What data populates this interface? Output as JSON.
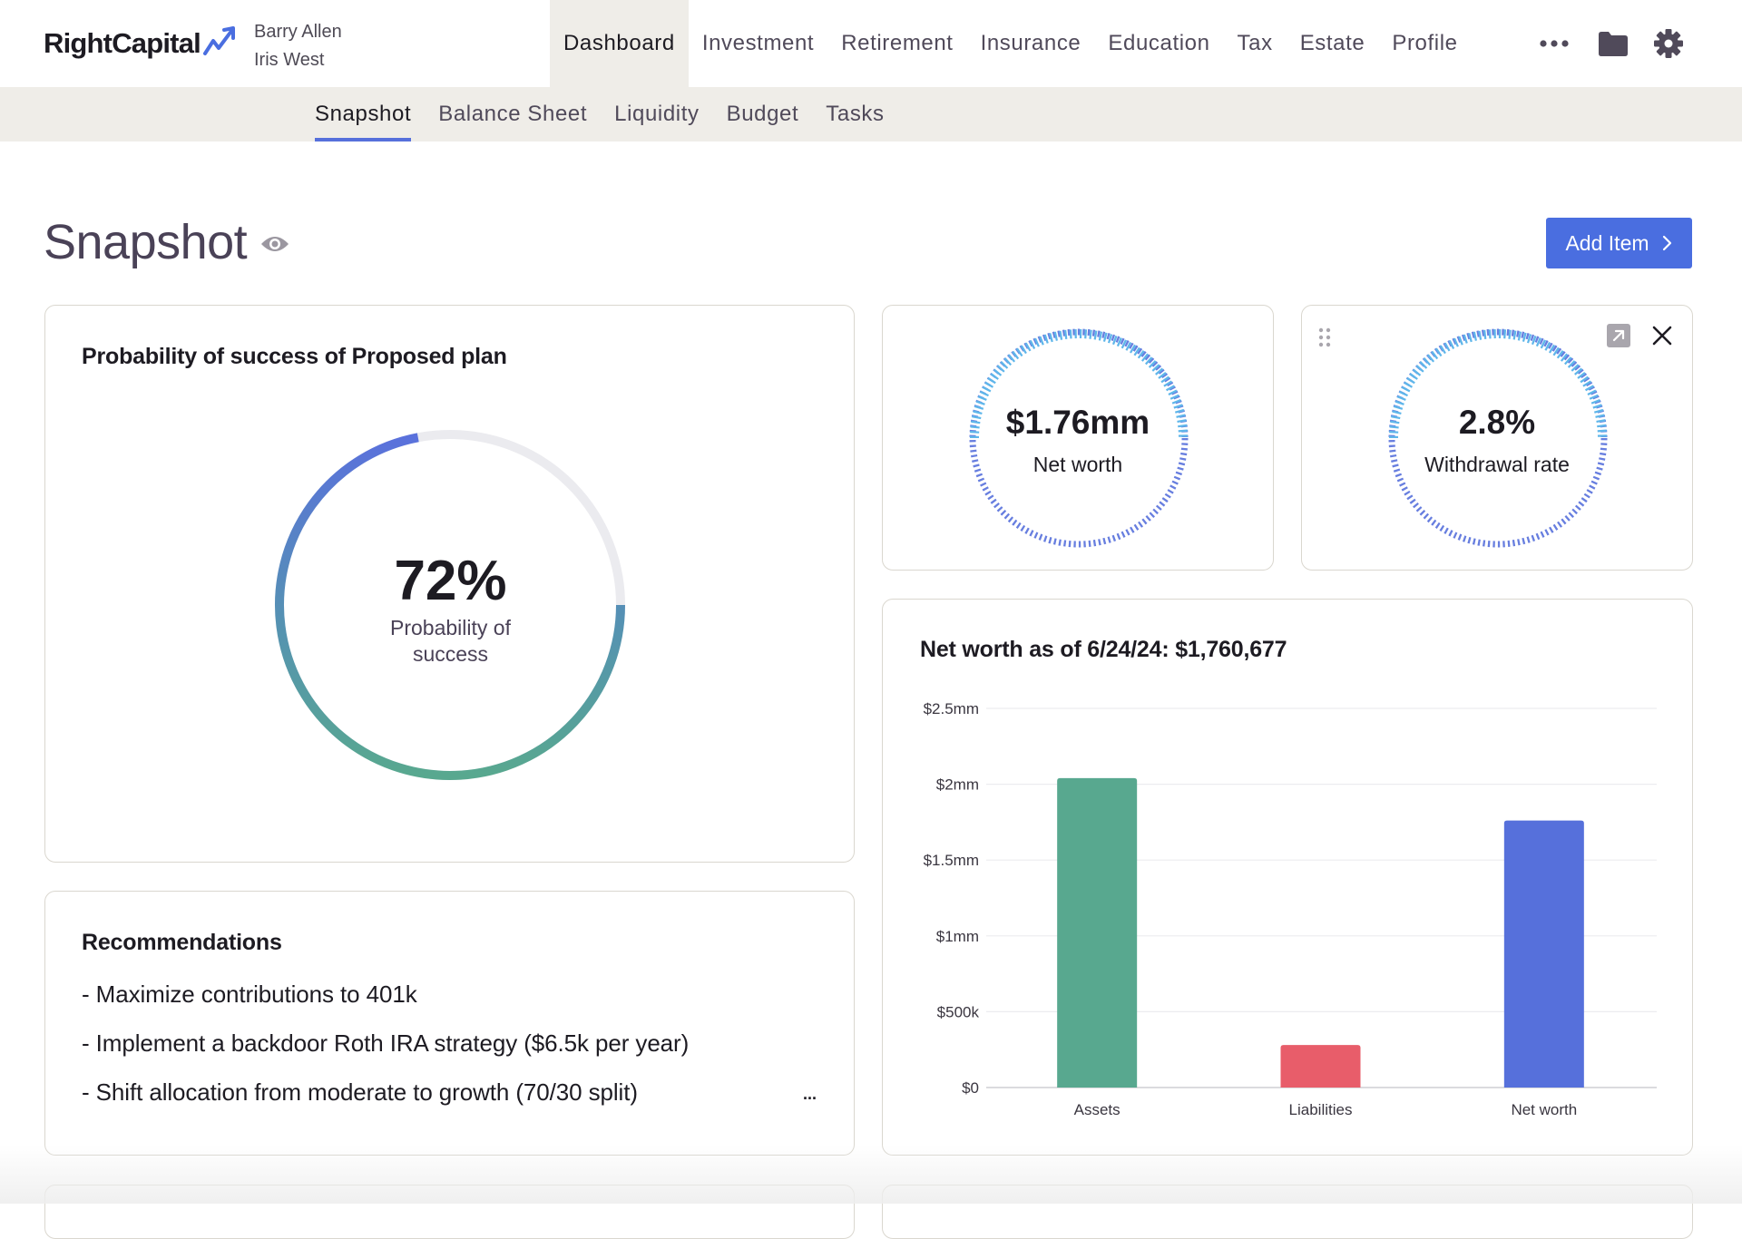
{
  "brand": {
    "name": "RightCapital"
  },
  "clients": [
    "Barry Allen",
    "Iris West"
  ],
  "main_nav": [
    {
      "label": "Dashboard",
      "active": true
    },
    {
      "label": "Investment"
    },
    {
      "label": "Retirement"
    },
    {
      "label": "Insurance"
    },
    {
      "label": "Education"
    },
    {
      "label": "Tax"
    },
    {
      "label": "Estate"
    },
    {
      "label": "Profile"
    }
  ],
  "toolbar_icons": [
    "more-icon",
    "folder-icon",
    "gear-icon"
  ],
  "sub_nav": [
    {
      "label": "Snapshot",
      "active": true
    },
    {
      "label": "Balance Sheet"
    },
    {
      "label": "Liquidity"
    },
    {
      "label": "Budget"
    },
    {
      "label": "Tasks"
    }
  ],
  "page": {
    "title": "Snapshot",
    "add_item_label": "Add Item"
  },
  "probability_card": {
    "title": "Probability of success of Proposed plan",
    "value": "72%",
    "label_line1": "Probability of",
    "label_line2": "success",
    "fraction": 0.72
  },
  "net_worth_stat": {
    "value": "$1.76mm",
    "label": "Net worth"
  },
  "withdrawal_stat": {
    "value": "2.8%",
    "label": "Withdrawal rate"
  },
  "recommendations": {
    "title": "Recommendations",
    "items": [
      "- Maximize contributions to 401k",
      "- Implement a backdoor Roth IRA strategy ($6.5k per year)",
      "- Shift allocation from moderate to growth (70/30 split)"
    ],
    "more_label": "..."
  },
  "colors": {
    "accent": "#4a6ee0",
    "assets": "#58a88f",
    "liabilities": "#e85d6a",
    "net_worth": "#5670db",
    "ring_track": "#ebebef"
  },
  "chart_data": {
    "type": "bar",
    "title": "Net worth as of 6/24/24: $1,760,677",
    "categories": [
      "Assets",
      "Liabilities",
      "Net worth"
    ],
    "values": [
      2040000,
      280000,
      1760677
    ],
    "colors": [
      "#58a88f",
      "#e85d6a",
      "#5670db"
    ],
    "yticks": [
      "$0",
      "$500k",
      "$1mm",
      "$1.5mm",
      "$2mm",
      "$2.5mm"
    ],
    "ylim": [
      0,
      2500000
    ],
    "grid": true
  }
}
